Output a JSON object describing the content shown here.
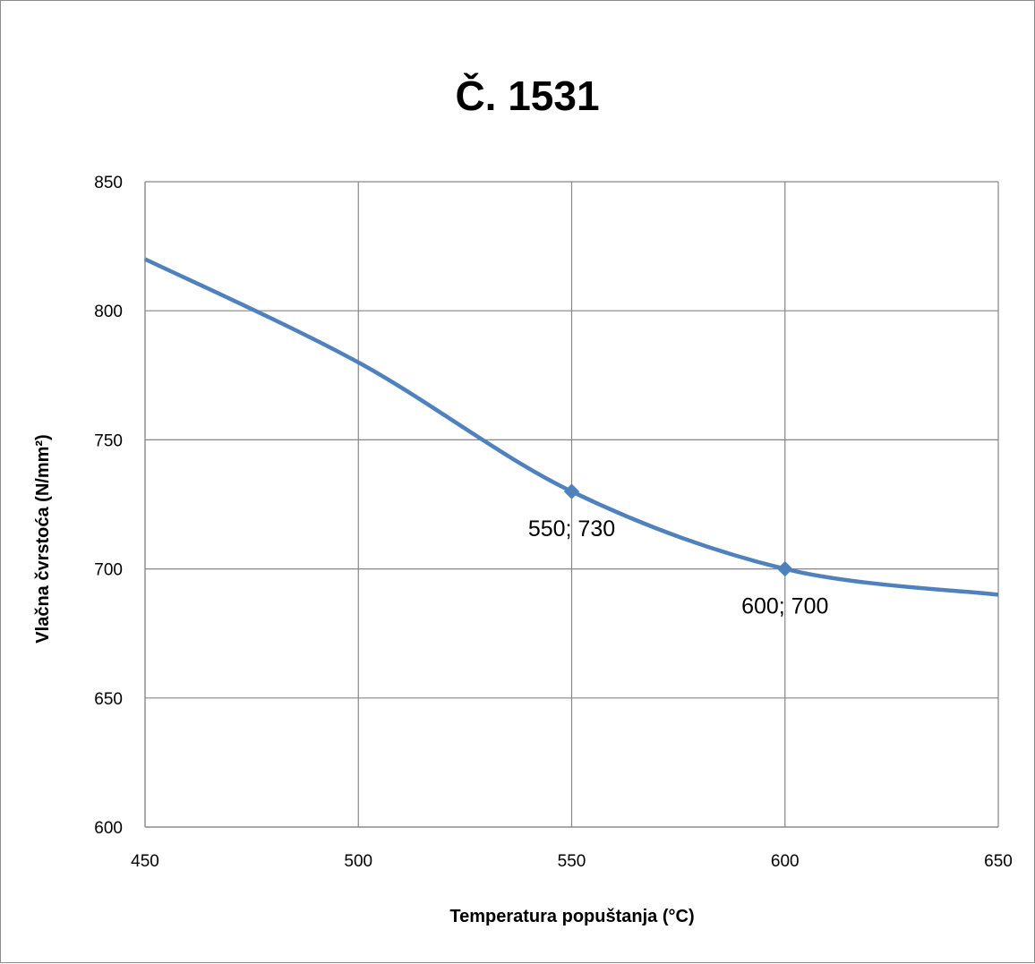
{
  "chart_data": {
    "type": "line",
    "title": "Č. 1531",
    "xlabel": "Temperatura popuštanja (°C)",
    "ylabel": "Vlačna čvrstoća (N/mm²)",
    "xlim": [
      450,
      650
    ],
    "ylim": [
      600,
      850
    ],
    "x_ticks": [
      "450",
      "500",
      "550",
      "600",
      "650"
    ],
    "y_ticks": [
      "600",
      "650",
      "700",
      "750",
      "800",
      "850"
    ],
    "grid": true,
    "legend": "none",
    "series": [
      {
        "color": "#4f81bd",
        "smooth": true,
        "points": [
          {
            "x": 450,
            "y": 820
          },
          {
            "x": 500,
            "y": 780
          },
          {
            "x": 550,
            "y": 730
          },
          {
            "x": 600,
            "y": 700
          },
          {
            "x": 650,
            "y": 690
          }
        ]
      }
    ],
    "data_labels": [
      {
        "x": 550,
        "y": 730,
        "text": "550; 730"
      },
      {
        "x": 600,
        "y": 700,
        "text": "600; 700"
      }
    ],
    "markers": [
      {
        "x": 550,
        "y": 730
      },
      {
        "x": 600,
        "y": 700
      }
    ]
  }
}
